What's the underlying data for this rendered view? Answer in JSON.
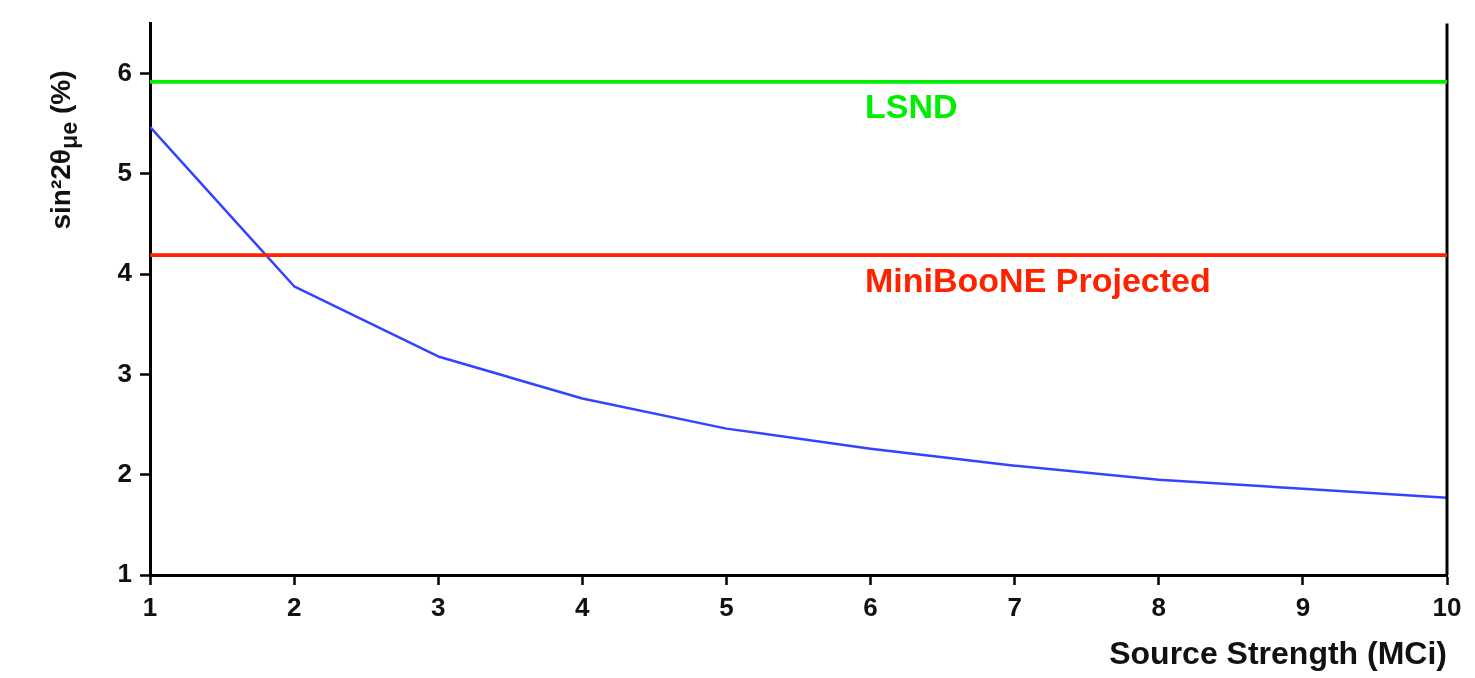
{
  "chart_data": {
    "type": "line",
    "xlabel": "Source Strength (MCi)",
    "ylabel": "sin²2θ$_{μe}$ (%)",
    "x": [
      1,
      2,
      3,
      4,
      5,
      6,
      7,
      8,
      9,
      10
    ],
    "series": [
      {
        "color": "#3344ff",
        "values": [
          5.47,
          3.88,
          3.18,
          2.76,
          2.46,
          2.26,
          2.09,
          1.95,
          1.86,
          1.77
        ]
      }
    ],
    "xlim": [
      1,
      10
    ],
    "xticks": [
      1,
      2,
      3,
      4,
      5,
      6,
      7,
      8,
      9,
      10
    ],
    "ylim": [
      1,
      6.5
    ],
    "yticks": [
      1,
      2,
      3,
      4,
      5,
      6
    ],
    "ref_lines": [
      {
        "axis": "y",
        "value": 5.92,
        "label": "LSND",
        "color": "#00ee00"
      },
      {
        "axis": "y",
        "value": 4.19,
        "label": "MiniBooNE Projected",
        "color": "#ff2200"
      }
    ],
    "grid": false,
    "legend": false,
    "marker": "none",
    "line_style": "solid"
  }
}
